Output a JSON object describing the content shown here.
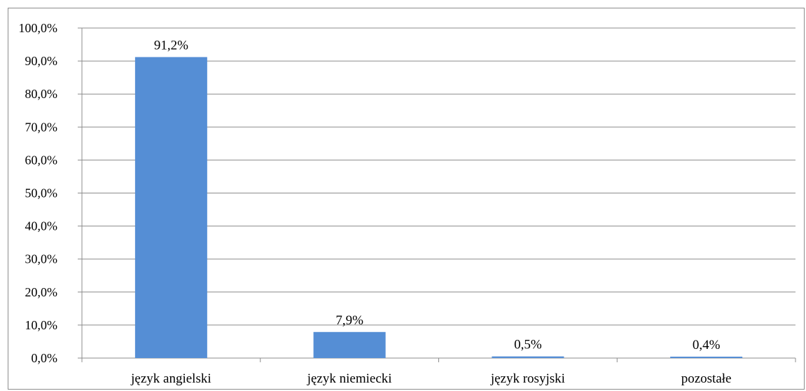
{
  "chart_data": {
    "type": "bar",
    "categories": [
      "język angielski",
      "język niemiecki",
      "język rosyjski",
      "pozostałe"
    ],
    "values": [
      91.2,
      7.9,
      0.5,
      0.4
    ],
    "data_labels": [
      "91,2%",
      "7,9%",
      "0,5%",
      "0,4%"
    ],
    "ylim": [
      0,
      100
    ],
    "yticks": [
      0,
      10,
      20,
      30,
      40,
      50,
      60,
      70,
      80,
      90,
      100
    ],
    "ytick_labels": [
      "0,0%",
      "10,0%",
      "20,0%",
      "30,0%",
      "40,0%",
      "50,0%",
      "60,0%",
      "70,0%",
      "80,0%",
      "90,0%",
      "100,0%"
    ],
    "grid": true,
    "legend": "none",
    "colors": {
      "bar": "#558ed5",
      "grid": "#8c8c8c"
    }
  }
}
